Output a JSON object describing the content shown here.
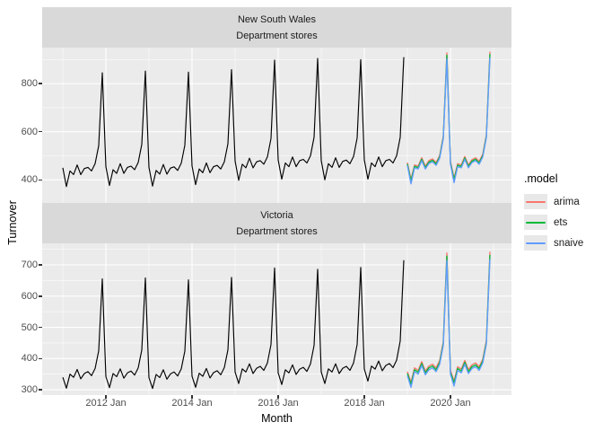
{
  "axes": {
    "x_title": "Month",
    "y_title": "Turnover"
  },
  "x_axis": {
    "tick_labels": [
      {
        "label": "2012 Jan",
        "month": 12
      },
      {
        "label": "2014 Jan",
        "month": 36
      },
      {
        "label": "2016 Jan",
        "month": 60
      },
      {
        "label": "2018 Jan",
        "month": 84
      },
      {
        "label": "2020 Jan",
        "month": 108
      }
    ],
    "minor_months": [
      0,
      24,
      48,
      72,
      96,
      120
    ]
  },
  "legend": {
    "title": ".model",
    "items": [
      {
        "label": "arima",
        "color": "#F8766D"
      },
      {
        "label": "ets",
        "color": "#00BA38"
      },
      {
        "label": "snaive",
        "color": "#619CFF"
      }
    ]
  },
  "palette": {
    "panel_bg": "#EBEBEB",
    "strip_bg": "#D9D9D9",
    "grid": "#FFFFFF",
    "data_line": "#000000"
  },
  "chart_data": [
    {
      "type": "line",
      "facet_line1": "New South Wales",
      "facet_line2": "Department stores",
      "xlabel": "Month",
      "ylabel": "Turnover",
      "x_start": "2011 Jan",
      "ylim": [
        304,
        950
      ],
      "y_ticks": [
        400,
        600,
        800
      ],
      "y_minor": [
        500,
        700,
        900
      ],
      "series": [
        {
          "name": "data",
          "color": "#000000",
          "start_month": 0,
          "values": [
            450,
            372,
            437,
            422,
            462,
            422,
            447,
            452,
            437,
            467,
            542,
            845,
            455,
            377,
            442,
            427,
            467,
            427,
            452,
            457,
            442,
            472,
            547,
            852,
            452,
            374,
            439,
            424,
            464,
            424,
            449,
            454,
            439,
            469,
            544,
            848,
            458,
            380,
            445,
            430,
            470,
            430,
            455,
            460,
            445,
            475,
            550,
            858,
            478,
            398,
            465,
            450,
            490,
            450,
            475,
            480,
            465,
            495,
            572,
            898,
            483,
            403,
            470,
            455,
            495,
            455,
            480,
            485,
            470,
            500,
            577,
            905,
            480,
            400,
            467,
            452,
            492,
            452,
            477,
            482,
            467,
            497,
            574,
            900,
            483,
            403,
            470,
            455,
            495,
            455,
            480,
            485,
            470,
            500,
            577,
            910
          ]
        },
        {
          "name": "arima",
          "color": "#F8766D",
          "start_month": 96,
          "values": [
            472,
            402,
            462,
            457,
            492,
            457,
            480,
            487,
            472,
            502,
            582,
            928,
            477,
            407,
            467,
            462,
            497,
            462,
            484,
            492,
            477,
            507,
            587,
            933
          ]
        },
        {
          "name": "ets",
          "color": "#00BA38",
          "start_month": 96,
          "values": [
            466,
            396,
            456,
            451,
            486,
            451,
            474,
            481,
            466,
            496,
            576,
            918,
            471,
            401,
            461,
            456,
            491,
            456,
            478,
            486,
            471,
            501,
            581,
            923
          ]
        },
        {
          "name": "snaive",
          "color": "#619CFF",
          "start_month": 96,
          "values": [
            460,
            383,
            450,
            445,
            480,
            445,
            468,
            475,
            460,
            490,
            570,
            903,
            465,
            388,
            455,
            450,
            485,
            450,
            472,
            480,
            465,
            495,
            575,
            908
          ]
        }
      ]
    },
    {
      "type": "line",
      "facet_line1": "Victoria",
      "facet_line2": "Department stores",
      "xlabel": "Month",
      "ylabel": "Turnover",
      "x_start": "2011 Jan",
      "ylim": [
        283,
        769
      ],
      "y_ticks": [
        300,
        400,
        500,
        600,
        700
      ],
      "y_minor": [
        350,
        450,
        550,
        650,
        750
      ],
      "series": [
        {
          "name": "data",
          "color": "#000000",
          "start_month": 0,
          "values": [
            340,
            305,
            350,
            340,
            365,
            335,
            352,
            358,
            345,
            368,
            425,
            655,
            342,
            307,
            352,
            342,
            367,
            337,
            354,
            360,
            347,
            370,
            427,
            658,
            339,
            304,
            349,
            339,
            364,
            334,
            351,
            357,
            344,
            367,
            424,
            652,
            343,
            308,
            353,
            343,
            368,
            338,
            355,
            361,
            348,
            371,
            428,
            660,
            357,
            320,
            367,
            357,
            383,
            352,
            369,
            375,
            362,
            386,
            445,
            690,
            354,
            317,
            364,
            354,
            380,
            349,
            366,
            372,
            359,
            383,
            442,
            686,
            357,
            320,
            367,
            357,
            383,
            352,
            369,
            375,
            362,
            386,
            445,
            692,
            366,
            328,
            376,
            366,
            392,
            361,
            378,
            384,
            371,
            395,
            456,
            715
          ]
        },
        {
          "name": "arima",
          "color": "#F8766D",
          "start_month": 96,
          "values": [
            358,
            324,
            370,
            362,
            390,
            360,
            376,
            382,
            370,
            394,
            454,
            738,
            362,
            328,
            374,
            366,
            394,
            364,
            380,
            386,
            374,
            398,
            458,
            742
          ]
        },
        {
          "name": "ets",
          "color": "#00BA38",
          "start_month": 96,
          "values": [
            352,
            318,
            364,
            356,
            384,
            354,
            370,
            376,
            364,
            388,
            448,
            728,
            356,
            322,
            368,
            360,
            388,
            358,
            374,
            380,
            368,
            392,
            452,
            732
          ]
        },
        {
          "name": "snaive",
          "color": "#619CFF",
          "start_month": 96,
          "values": [
            345,
            308,
            358,
            350,
            378,
            348,
            364,
            370,
            358,
            382,
            442,
            714,
            349,
            312,
            362,
            354,
            382,
            352,
            368,
            374,
            362,
            386,
            446,
            718
          ]
        }
      ]
    }
  ]
}
